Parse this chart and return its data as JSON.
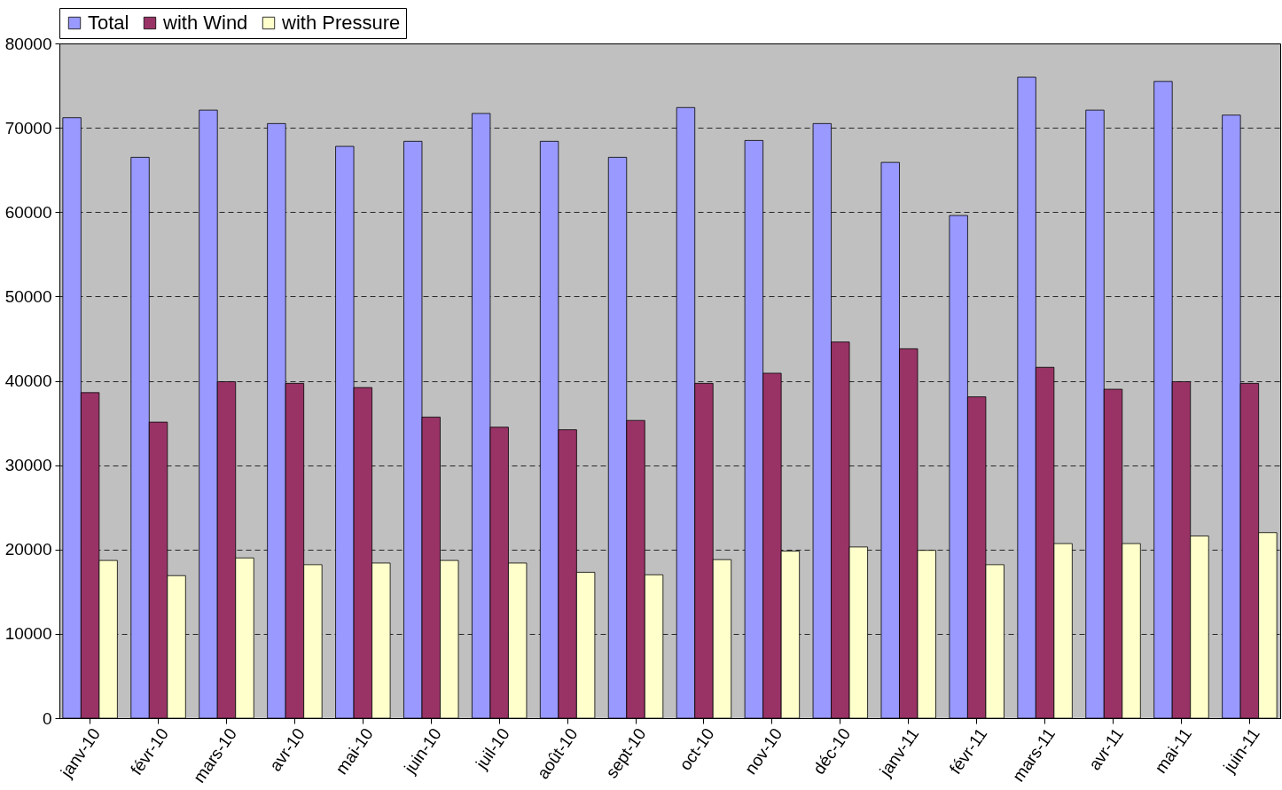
{
  "chart_data": {
    "type": "bar",
    "categories": [
      "janv-10",
      "févr-10",
      "mars-10",
      "avr-10",
      "mai-10",
      "juin-10",
      "juil-10",
      "août-10",
      "sept-10",
      "oct-10",
      "nov-10",
      "déc-10",
      "janv-11",
      "févr-11",
      "mars-11",
      "avr-11",
      "mai-11",
      "juin-11"
    ],
    "series": [
      {
        "name": "Total",
        "color": "#9999ff",
        "values": [
          71200,
          66500,
          72100,
          70500,
          67800,
          68400,
          71700,
          68400,
          66500,
          72400,
          68500,
          70500,
          65900,
          59600,
          76000,
          72100,
          75500,
          71500
        ]
      },
      {
        "name": "with Wind",
        "color": "#993366",
        "values": [
          38600,
          35100,
          39900,
          39700,
          39200,
          35700,
          34500,
          34200,
          35300,
          39700,
          40900,
          44600,
          43800,
          38100,
          41600,
          39000,
          39900,
          39700
        ]
      },
      {
        "name": "with Pressure",
        "color": "#ffffcc",
        "values": [
          18700,
          16900,
          19000,
          18200,
          18400,
          18700,
          18400,
          17300,
          17000,
          18800,
          19800,
          20300,
          19900,
          18200,
          20700,
          20700,
          21600,
          22000
        ]
      }
    ],
    "ylim": [
      0,
      80000
    ],
    "yticks": [
      0,
      10000,
      20000,
      30000,
      40000,
      50000,
      60000,
      70000,
      80000
    ],
    "grid": "y",
    "legend": "top left"
  }
}
